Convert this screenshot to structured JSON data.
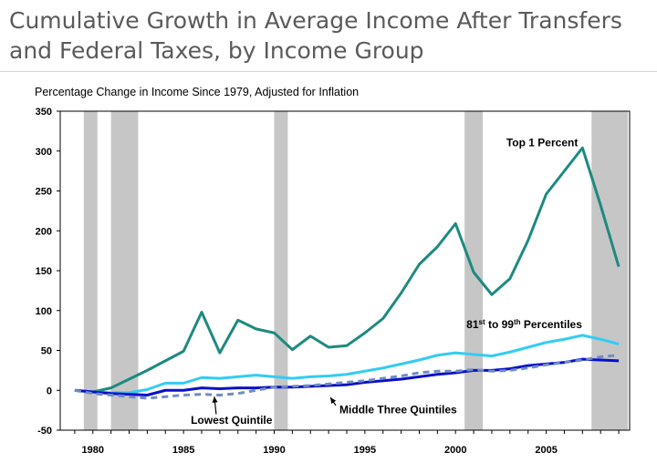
{
  "title": "Cumulative Growth in Average Income After Transfers and Federal Taxes, by Income Group",
  "chart_data": {
    "type": "line",
    "title": "Cumulative Growth in Average Income After Transfers and Federal Taxes, by Income Group",
    "subtitle": "Percentage Change in Income Since 1979, Adjusted for Inflation",
    "xlabel": "",
    "ylabel": "",
    "ylim": [
      -50,
      350
    ],
    "xlim": [
      1978.2,
      2009.6
    ],
    "y_ticks": [
      -50,
      0,
      50,
      100,
      150,
      200,
      250,
      300,
      350
    ],
    "x_ticks": [
      1980,
      1985,
      1990,
      1995,
      2000,
      2005
    ],
    "x_tick_labels": [
      "1980",
      "1985",
      "1990",
      "1995",
      "2000",
      "2005"
    ],
    "grid": false,
    "recession_bands": [
      [
        1979.5,
        1980.25
      ],
      [
        1981.0,
        1982.5
      ],
      [
        1990.0,
        1990.75
      ],
      [
        2000.5,
        2001.5
      ],
      [
        2007.5,
        2009.5
      ]
    ],
    "x": [
      1979,
      1980,
      1981,
      1982,
      1983,
      1984,
      1985,
      1986,
      1987,
      1988,
      1989,
      1990,
      1991,
      1992,
      1993,
      1994,
      1995,
      1996,
      1997,
      1998,
      1999,
      2000,
      2001,
      2002,
      2003,
      2004,
      2005,
      2006,
      2007,
      2008,
      2009
    ],
    "series": [
      {
        "name": "Top 1 Percent",
        "color": "#1d8a80",
        "dashed": false,
        "values": [
          0,
          -2,
          3,
          14,
          25,
          37,
          49,
          98,
          47,
          88,
          77,
          72,
          51,
          68,
          54,
          56,
          72,
          90,
          122,
          158,
          180,
          209,
          148,
          120,
          140,
          188,
          246,
          275,
          304,
          232,
          155
        ]
      },
      {
        "name": "81st to 99th Percentiles",
        "color": "#33ccf2",
        "dashed": false,
        "values": [
          0,
          -2,
          -3,
          -3,
          1,
          9,
          9,
          16,
          15,
          17,
          19,
          17,
          15,
          17,
          18,
          20,
          24,
          28,
          33,
          38,
          44,
          47,
          45,
          43,
          48,
          54,
          60,
          64,
          69,
          64,
          58
        ]
      },
      {
        "name": "Middle Three Quintiles",
        "color": "#0a10c8",
        "dashed": false,
        "values": [
          0,
          -2,
          -4,
          -5,
          -6,
          0,
          0,
          3,
          2,
          3,
          3,
          4,
          4,
          5,
          6,
          7,
          10,
          12,
          14,
          17,
          20,
          22,
          25,
          25,
          27,
          31,
          33,
          35,
          39,
          38,
          37
        ]
      },
      {
        "name": "Lowest Quintile",
        "color": "#6f8cc4",
        "dashed": true,
        "values": [
          0,
          -4,
          -6,
          -8,
          -10,
          -8,
          -6,
          -5,
          -6,
          -4,
          0,
          4,
          5,
          6,
          8,
          10,
          12,
          15,
          18,
          22,
          24,
          24,
          26,
          24,
          25,
          28,
          32,
          35,
          38,
          42,
          44
        ]
      }
    ],
    "annotations": [
      {
        "text_main": "Top 1 Percent",
        "sup1": "",
        "mid": "",
        "sup2": "",
        "tail": "",
        "x": 2002.8,
        "y": 306,
        "arrow": false,
        "color": "#000000"
      },
      {
        "text_main": "81",
        "sup1": "st",
        "mid": " to 99",
        "sup2": "th",
        "tail": " Percentiles",
        "x": 2000.6,
        "y": 78,
        "arrow": false,
        "color": "#000000"
      },
      {
        "text_main": "Middle Three Quintiles",
        "sup1": "",
        "mid": "",
        "sup2": "",
        "tail": "",
        "x": 1993.6,
        "y": -29,
        "arrow": true,
        "arrow_to": [
          1993.1,
          -9
        ],
        "arrow_from": [
          1993.4,
          -19
        ],
        "color": "#000000"
      },
      {
        "text_main": "Lowest Quintile",
        "sup1": "",
        "mid": "",
        "sup2": "",
        "tail": "",
        "x": 1985.4,
        "y": -42,
        "arrow": true,
        "arrow_to": [
          1986.7,
          -8
        ],
        "arrow_from": [
          1986.8,
          -30
        ],
        "color": "#000000"
      }
    ]
  }
}
